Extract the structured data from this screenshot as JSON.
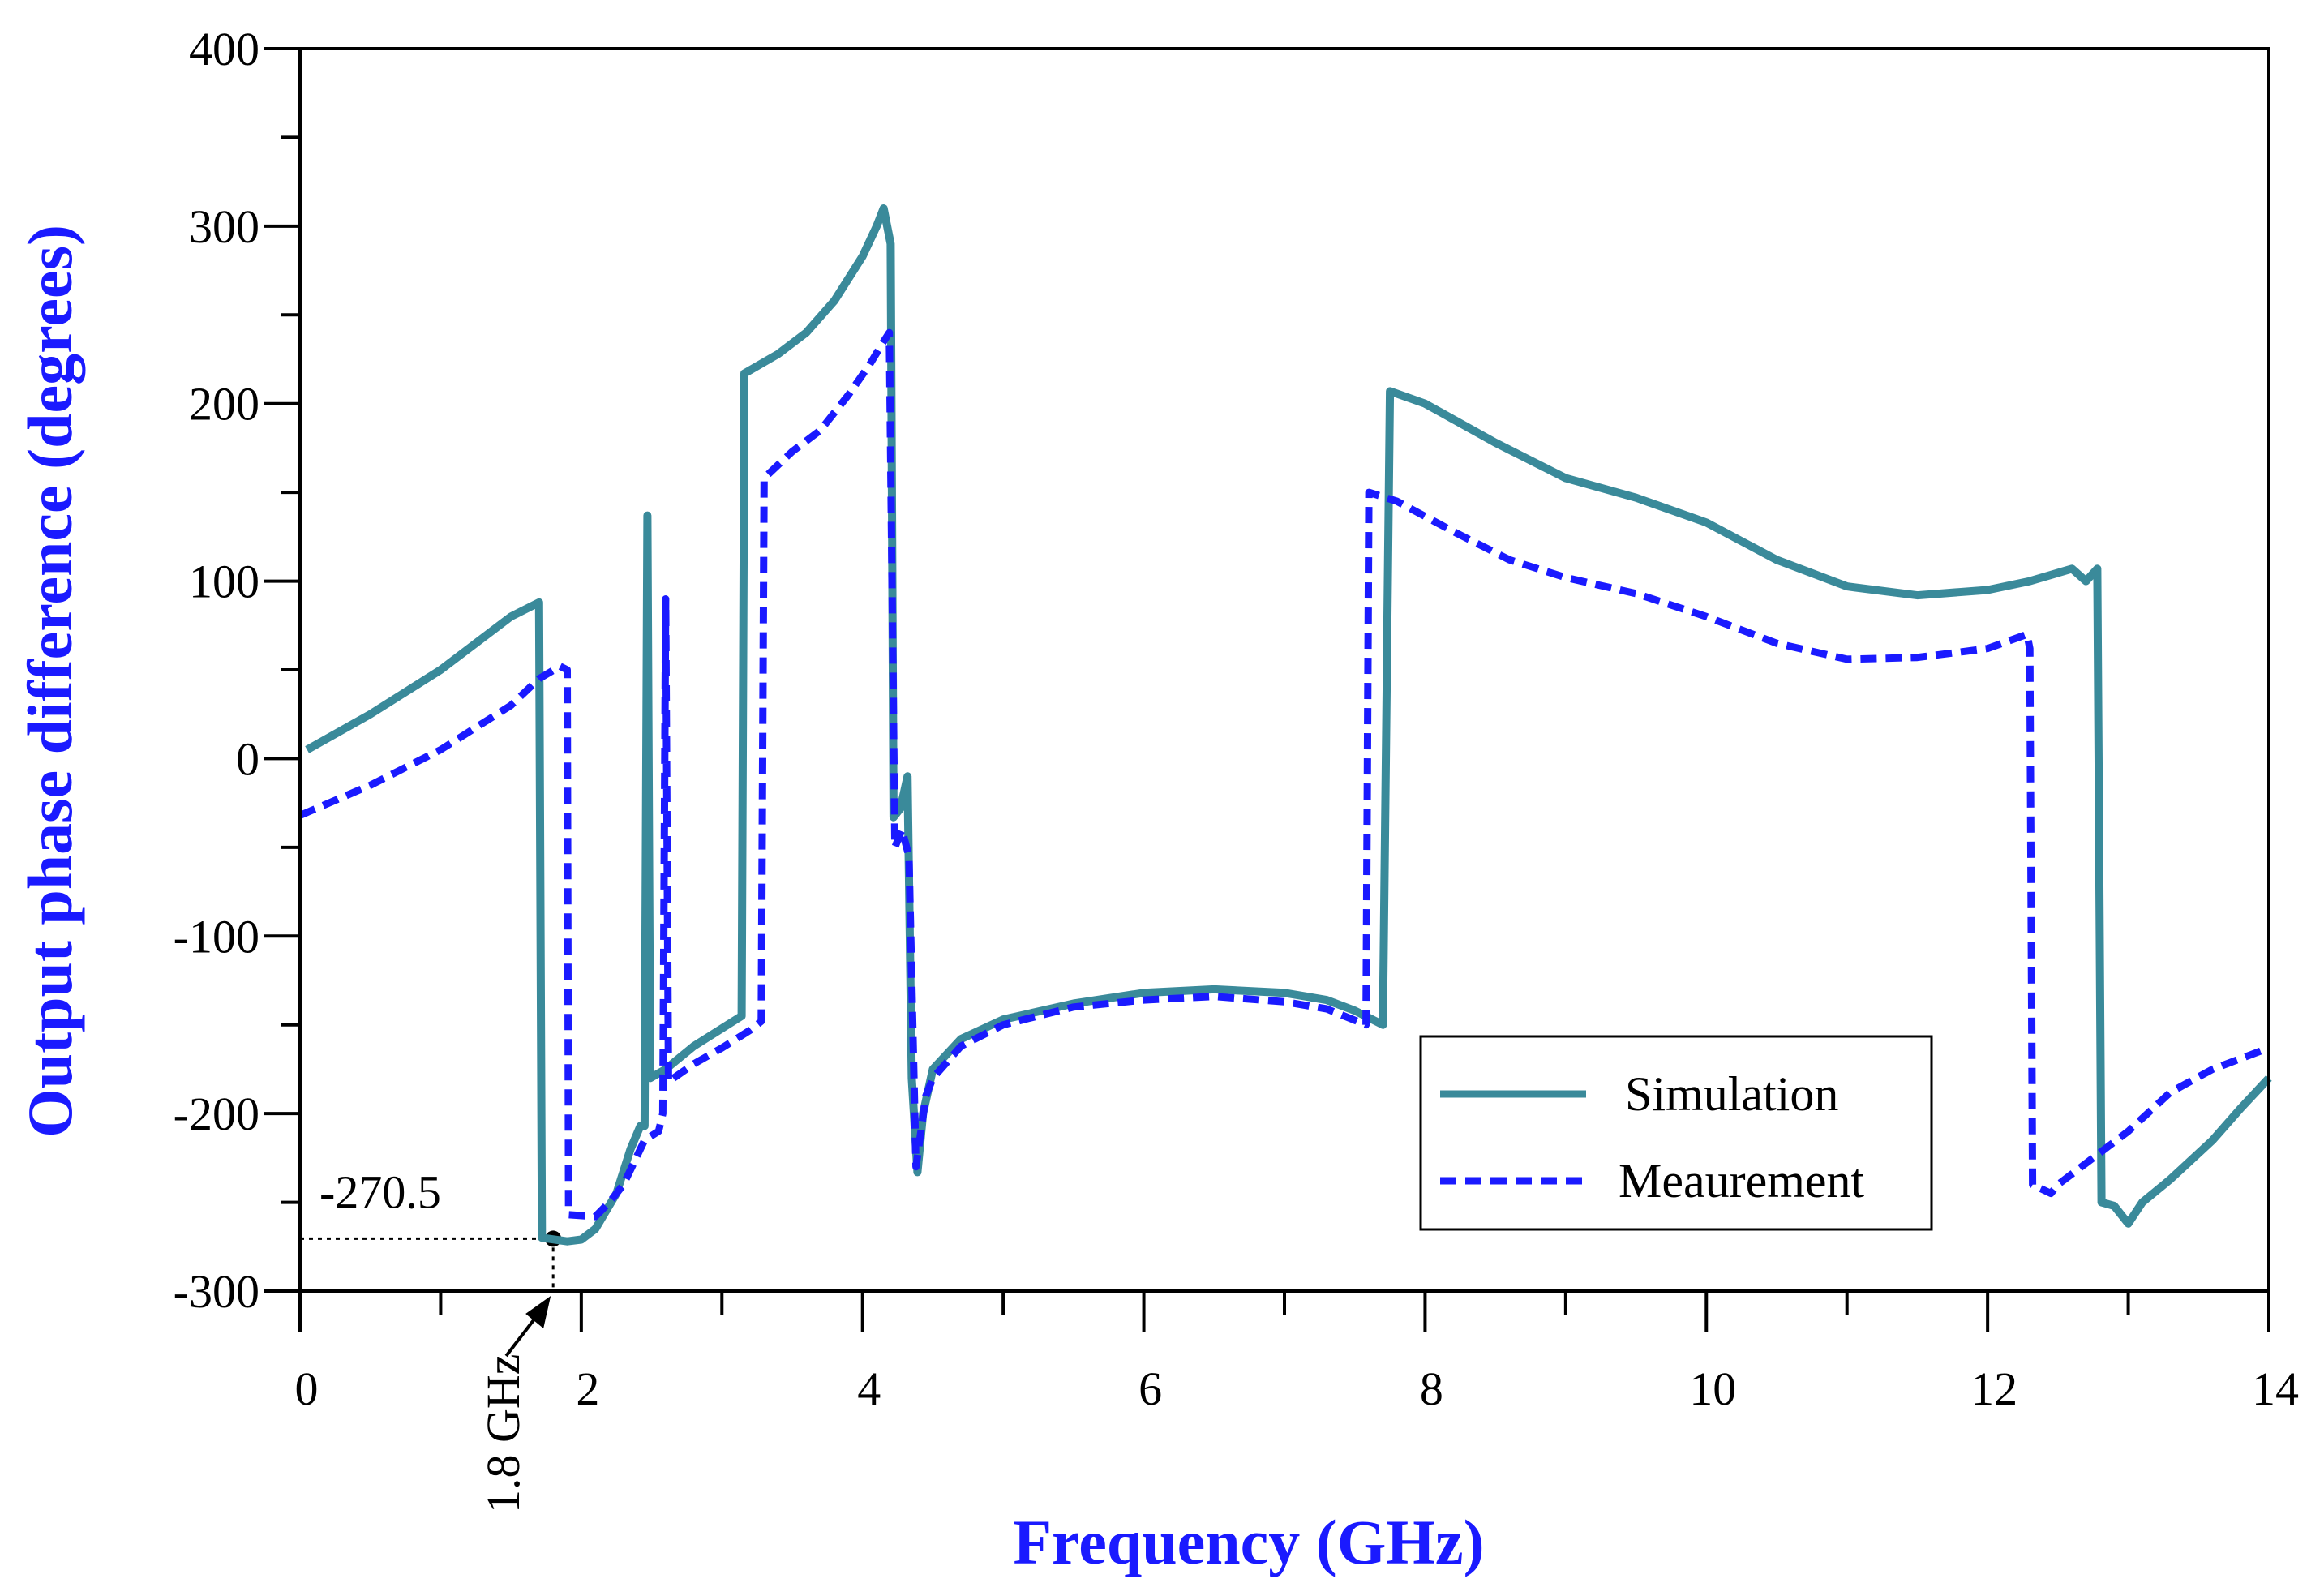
{
  "chart_data": {
    "type": "line",
    "title": "",
    "xlabel": "Frequency (GHz)",
    "ylabel": "Output phase difference (degrees)",
    "xlim": [
      0,
      14
    ],
    "ylim": [
      -300,
      400
    ],
    "xticks": [
      0,
      2,
      4,
      6,
      8,
      10,
      12,
      14
    ],
    "yticks": [
      -300,
      -200,
      -100,
      0,
      100,
      200,
      300,
      400
    ],
    "x_minor_step": 1,
    "y_minor_step": 50,
    "grid": false,
    "legend_position": "bottom-right",
    "series": [
      {
        "name": "Simulation",
        "color": "#3a8a9a",
        "style": "solid",
        "points": [
          [
            0.05,
            5
          ],
          [
            0.5,
            25
          ],
          [
            1.0,
            50
          ],
          [
            1.5,
            80
          ],
          [
            1.7,
            88
          ],
          [
            1.72,
            -270
          ],
          [
            1.9,
            -272
          ],
          [
            2.0,
            -271
          ],
          [
            2.1,
            -265
          ],
          [
            2.25,
            -245
          ],
          [
            2.35,
            -220
          ],
          [
            2.42,
            -207
          ],
          [
            2.45,
            -207
          ],
          [
            2.47,
            137
          ],
          [
            2.49,
            -180
          ],
          [
            2.6,
            -175
          ],
          [
            2.8,
            -162
          ],
          [
            3.0,
            -152
          ],
          [
            3.14,
            -145
          ],
          [
            3.16,
            217
          ],
          [
            3.4,
            228
          ],
          [
            3.6,
            240
          ],
          [
            3.8,
            258
          ],
          [
            4.0,
            283
          ],
          [
            4.1,
            300
          ],
          [
            4.15,
            310
          ],
          [
            4.2,
            290
          ],
          [
            4.22,
            -33
          ],
          [
            4.27,
            -28
          ],
          [
            4.32,
            -10
          ],
          [
            4.35,
            -180
          ],
          [
            4.39,
            -233
          ],
          [
            4.43,
            -200
          ],
          [
            4.5,
            -175
          ],
          [
            4.7,
            -158
          ],
          [
            5.0,
            -147
          ],
          [
            5.5,
            -138
          ],
          [
            6.0,
            -132
          ],
          [
            6.5,
            -130
          ],
          [
            7.0,
            -132
          ],
          [
            7.3,
            -136
          ],
          [
            7.5,
            -142
          ],
          [
            7.7,
            -150
          ],
          [
            7.75,
            207
          ],
          [
            8.0,
            200
          ],
          [
            8.5,
            178
          ],
          [
            9.0,
            158
          ],
          [
            9.5,
            147
          ],
          [
            10.0,
            133
          ],
          [
            10.5,
            112
          ],
          [
            11.0,
            97
          ],
          [
            11.5,
            92
          ],
          [
            12.0,
            95
          ],
          [
            12.3,
            100
          ],
          [
            12.6,
            107
          ],
          [
            12.7,
            100
          ],
          [
            12.78,
            107
          ],
          [
            12.81,
            -250
          ],
          [
            12.9,
            -252
          ],
          [
            13.0,
            -262
          ],
          [
            13.1,
            -250
          ],
          [
            13.3,
            -237
          ],
          [
            13.6,
            -215
          ],
          [
            13.8,
            -197
          ],
          [
            14.0,
            -180
          ]
        ]
      },
      {
        "name": "Meaurement",
        "color": "#1a1aff",
        "style": "dashed",
        "points": [
          [
            0.0,
            -32
          ],
          [
            0.5,
            -15
          ],
          [
            1.0,
            5
          ],
          [
            1.5,
            30
          ],
          [
            1.7,
            45
          ],
          [
            1.85,
            52
          ],
          [
            1.9,
            50
          ],
          [
            1.91,
            -257
          ],
          [
            2.1,
            -258
          ],
          [
            2.2,
            -250
          ],
          [
            2.3,
            -240
          ],
          [
            2.45,
            -215
          ],
          [
            2.55,
            -210
          ],
          [
            2.58,
            -200
          ],
          [
            2.6,
            90
          ],
          [
            2.62,
            -182
          ],
          [
            2.8,
            -172
          ],
          [
            3.0,
            -163
          ],
          [
            3.2,
            -153
          ],
          [
            3.28,
            -148
          ],
          [
            3.3,
            158
          ],
          [
            3.5,
            173
          ],
          [
            3.7,
            185
          ],
          [
            3.9,
            205
          ],
          [
            4.05,
            222
          ],
          [
            4.15,
            235
          ],
          [
            4.19,
            240
          ],
          [
            4.23,
            -50
          ],
          [
            4.28,
            -40
          ],
          [
            4.33,
            -55
          ],
          [
            4.38,
            -230
          ],
          [
            4.45,
            -190
          ],
          [
            4.5,
            -180
          ],
          [
            4.7,
            -162
          ],
          [
            5.0,
            -150
          ],
          [
            5.5,
            -140
          ],
          [
            6.0,
            -136
          ],
          [
            6.5,
            -134
          ],
          [
            7.0,
            -137
          ],
          [
            7.3,
            -141
          ],
          [
            7.58,
            -150
          ],
          [
            7.6,
            150
          ],
          [
            7.8,
            145
          ],
          [
            8.2,
            128
          ],
          [
            8.6,
            112
          ],
          [
            9.0,
            102
          ],
          [
            9.5,
            93
          ],
          [
            10.0,
            80
          ],
          [
            10.5,
            65
          ],
          [
            11.0,
            56
          ],
          [
            11.5,
            57
          ],
          [
            12.0,
            62
          ],
          [
            12.28,
            70
          ],
          [
            12.3,
            62
          ],
          [
            12.32,
            -240
          ],
          [
            12.45,
            -245
          ],
          [
            12.5,
            -240
          ],
          [
            12.7,
            -228
          ],
          [
            13.0,
            -210
          ],
          [
            13.3,
            -188
          ],
          [
            13.6,
            -175
          ],
          [
            14.0,
            -163
          ]
        ]
      }
    ],
    "annotation": {
      "value_label": "-270.5",
      "freq_label": "1.8 GHz",
      "x": 1.8,
      "y": -270.5
    }
  }
}
